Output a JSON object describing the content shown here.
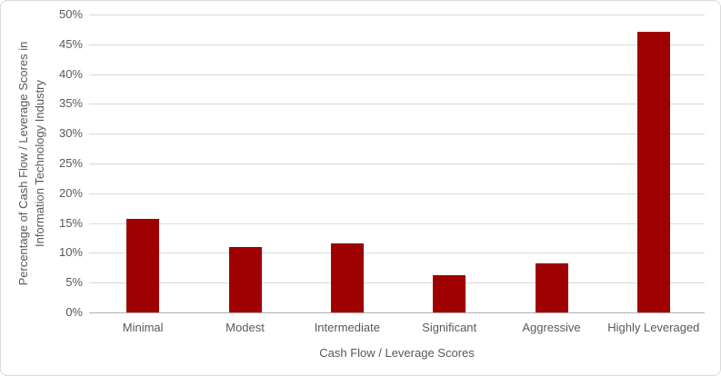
{
  "chart_data": {
    "type": "bar",
    "title": "",
    "categories": [
      "Minimal",
      "Modest",
      "Intermediate",
      "Significant",
      "Aggressive",
      "Highly Leveraged"
    ],
    "values": [
      15.7,
      11.0,
      11.6,
      6.3,
      8.3,
      47.1
    ],
    "series_name": "Percentage of Cash Flow / Leverage Scores",
    "xlabel": "Cash Flow / Leverage Scores",
    "ylabel": "Percentage of Cash Flow / Leverage Scores in Information Technology Industry",
    "ylabel_line1": "Percentage of Cash Flow / Leverage Scores in",
    "ylabel_line2": "Information Technology Industry",
    "y_ticks": [
      "0%",
      "5%",
      "10%",
      "15%",
      "20%",
      "25%",
      "30%",
      "35%",
      "40%",
      "45%",
      "50%"
    ],
    "ylim": [
      0,
      50
    ],
    "y_tick_step": 5,
    "grid": true,
    "legend_position": "none",
    "bar_color": "#9f0000",
    "gridline_color": "#d9d9d9",
    "axis_line_color": "#adadad",
    "text_color": "#595959",
    "background_color": "#ffffff"
  }
}
